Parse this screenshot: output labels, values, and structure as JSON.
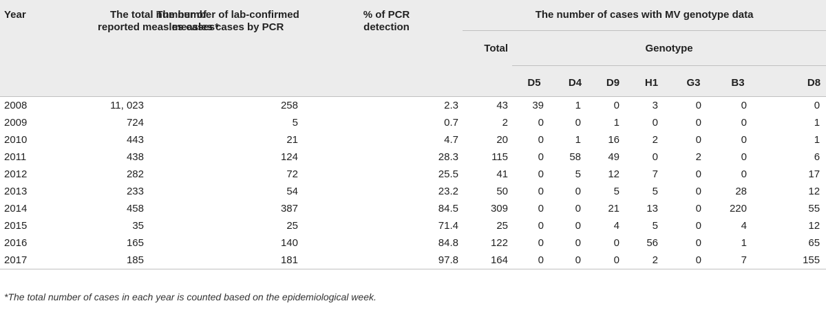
{
  "headers": {
    "year": "Year",
    "total_reported": "The total number of reported measles cases*",
    "lab_confirmed": "The number of lab-confirmed measles cases by PCR",
    "pcr_detection": "% of PCR detection",
    "mv_genotype": "The number of cases with MV genotype data",
    "total": "Total",
    "genotype": "Genotype",
    "genotypes": [
      "D5",
      "D4",
      "D9",
      "H1",
      "G3",
      "B3",
      "D8"
    ]
  },
  "rows": [
    {
      "year": "2008",
      "reported": "11, 023",
      "confirmed": "258",
      "pcr": "2.3",
      "total": "43",
      "g": [
        "39",
        "1",
        "0",
        "3",
        "0",
        "0",
        "0"
      ]
    },
    {
      "year": "2009",
      "reported": "724",
      "confirmed": "5",
      "pcr": "0.7",
      "total": "2",
      "g": [
        "0",
        "0",
        "1",
        "0",
        "0",
        "0",
        "1"
      ]
    },
    {
      "year": "2010",
      "reported": "443",
      "confirmed": "21",
      "pcr": "4.7",
      "total": "20",
      "g": [
        "0",
        "1",
        "16",
        "2",
        "0",
        "0",
        "1"
      ]
    },
    {
      "year": "2011",
      "reported": "438",
      "confirmed": "124",
      "pcr": "28.3",
      "total": "115",
      "g": [
        "0",
        "58",
        "49",
        "0",
        "2",
        "0",
        "6"
      ]
    },
    {
      "year": "2012",
      "reported": "282",
      "confirmed": "72",
      "pcr": "25.5",
      "total": "41",
      "g": [
        "0",
        "5",
        "12",
        "7",
        "0",
        "0",
        "17"
      ]
    },
    {
      "year": "2013",
      "reported": "233",
      "confirmed": "54",
      "pcr": "23.2",
      "total": "50",
      "g": [
        "0",
        "0",
        "5",
        "5",
        "0",
        "28",
        "12"
      ]
    },
    {
      "year": "2014",
      "reported": "458",
      "confirmed": "387",
      "pcr": "84.5",
      "total": "309",
      "g": [
        "0",
        "0",
        "21",
        "13",
        "0",
        "220",
        "55"
      ]
    },
    {
      "year": "2015",
      "reported": "35",
      "confirmed": "25",
      "pcr": "71.4",
      "total": "25",
      "g": [
        "0",
        "0",
        "4",
        "5",
        "0",
        "4",
        "12"
      ]
    },
    {
      "year": "2016",
      "reported": "165",
      "confirmed": "140",
      "pcr": "84.8",
      "total": "122",
      "g": [
        "0",
        "0",
        "0",
        "56",
        "0",
        "1",
        "65"
      ]
    },
    {
      "year": "2017",
      "reported": "185",
      "confirmed": "181",
      "pcr": "97.8",
      "total": "164",
      "g": [
        "0",
        "0",
        "0",
        "2",
        "0",
        "7",
        "155"
      ]
    }
  ],
  "footnote": "*The total number of cases in each year is counted based on the epidemiological week."
}
